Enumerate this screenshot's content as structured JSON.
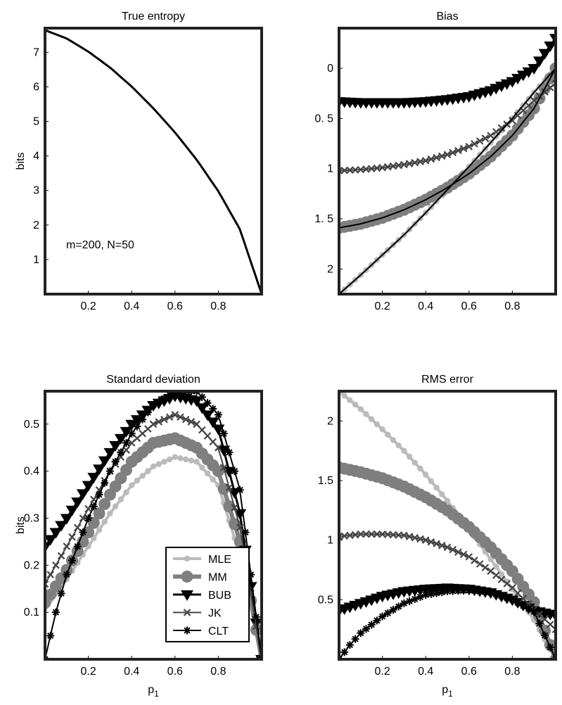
{
  "chart_data": [
    {
      "id": "true_entropy",
      "type": "line",
      "title": "True entropy",
      "xlabel": "",
      "ylabel": "bits",
      "xlim": [
        0,
        1
      ],
      "ylim": [
        0,
        7.7
      ],
      "xticks": [
        0.2,
        0.4,
        0.6,
        0.8
      ],
      "xticklabels": [
        "0.2",
        "0.4",
        "0.6",
        "0.8"
      ],
      "yticks": [
        1,
        2,
        3,
        4,
        5,
        6,
        7
      ],
      "yticklabels": [
        "1",
        "2",
        "3",
        "4",
        "5",
        "6",
        "7"
      ],
      "annotation": "m=200, N=50",
      "series": [
        {
          "x": [
            0,
            0.1,
            0.2,
            0.3,
            0.4,
            0.5,
            0.6,
            0.7,
            0.8,
            0.9,
            1.0
          ],
          "y": [
            7.64,
            7.4,
            7.02,
            6.56,
            6.01,
            5.38,
            4.68,
            3.89,
            2.98,
            1.87,
            0.0
          ],
          "color": "#000000"
        }
      ]
    },
    {
      "id": "bias",
      "type": "line",
      "title": "Bias",
      "xlabel": "",
      "ylabel": "",
      "xlim": [
        0,
        1
      ],
      "ylim": [
        -0.4,
        2.25
      ],
      "y_inverted": true,
      "xticks": [
        0.2,
        0.4,
        0.6,
        0.8
      ],
      "xticklabels": [
        "0.2",
        "0.4",
        "0.6",
        "0.8"
      ],
      "yticks": [
        0,
        0.5,
        1,
        1.5,
        2
      ],
      "yticklabels": [
        "0",
        "0. 5",
        "1",
        "1. 5",
        "2"
      ],
      "series": [
        {
          "name": "MLE",
          "marker": "dot",
          "x": [
            0,
            0.1,
            0.2,
            0.3,
            0.4,
            0.5,
            0.6,
            0.7,
            0.8,
            0.9,
            1.0
          ],
          "y": [
            2.25,
            2.06,
            1.86,
            1.66,
            1.44,
            1.21,
            0.98,
            0.74,
            0.5,
            0.24,
            0.0
          ]
        },
        {
          "name": "MM",
          "marker": "circle",
          "x": [
            0,
            0.1,
            0.2,
            0.3,
            0.4,
            0.5,
            0.6,
            0.7,
            0.8,
            0.9,
            1.0
          ],
          "y": [
            1.59,
            1.55,
            1.49,
            1.41,
            1.31,
            1.19,
            1.05,
            0.88,
            0.67,
            0.4,
            0.0
          ]
        },
        {
          "name": "BUB",
          "marker": "triangle",
          "x": [
            0,
            0.1,
            0.2,
            0.3,
            0.4,
            0.5,
            0.6,
            0.7,
            0.8,
            0.9,
            1.0
          ],
          "y": [
            0.33,
            0.34,
            0.34,
            0.34,
            0.33,
            0.31,
            0.28,
            0.22,
            0.13,
            0.0,
            -0.3
          ]
        },
        {
          "name": "JK",
          "marker": "x",
          "x": [
            0,
            0.1,
            0.2,
            0.3,
            0.4,
            0.5,
            0.6,
            0.7,
            0.8,
            0.9,
            1.0
          ],
          "y": [
            1.02,
            1.01,
            0.99,
            0.96,
            0.92,
            0.86,
            0.78,
            0.67,
            0.52,
            0.32,
            0.15
          ]
        }
      ]
    },
    {
      "id": "standard_deviation",
      "type": "line",
      "title": "Standard deviation",
      "xlabel": "p1",
      "ylabel": "bits",
      "xlim": [
        0,
        1
      ],
      "ylim": [
        0,
        0.57
      ],
      "xticks": [
        0.2,
        0.4,
        0.6,
        0.8
      ],
      "xticklabels": [
        "0.2",
        "0.4",
        "0.6",
        "0.8"
      ],
      "yticks": [
        0.1,
        0.2,
        0.3,
        0.4,
        0.5
      ],
      "yticklabels": [
        "0.1",
        "0.2",
        "0.3",
        "0.4",
        "0.5"
      ],
      "series": [
        {
          "name": "MLE",
          "marker": "dot",
          "x": [
            0,
            0.1,
            0.2,
            0.3,
            0.4,
            0.5,
            0.6,
            0.7,
            0.8,
            0.9,
            1.0
          ],
          "y": [
            0.11,
            0.17,
            0.24,
            0.31,
            0.37,
            0.41,
            0.43,
            0.42,
            0.37,
            0.22,
            0.0
          ]
        },
        {
          "name": "MM",
          "marker": "circle",
          "x": [
            0,
            0.1,
            0.2,
            0.3,
            0.4,
            0.5,
            0.6,
            0.7,
            0.8,
            0.9,
            1.0
          ],
          "y": [
            0.12,
            0.19,
            0.27,
            0.35,
            0.42,
            0.46,
            0.47,
            0.45,
            0.4,
            0.25,
            0.0
          ]
        },
        {
          "name": "BUB",
          "marker": "triangle",
          "x": [
            0,
            0.1,
            0.2,
            0.3,
            0.4,
            0.5,
            0.6,
            0.7,
            0.8,
            0.9,
            1.0
          ],
          "y": [
            0.24,
            0.3,
            0.37,
            0.44,
            0.5,
            0.54,
            0.56,
            0.55,
            0.49,
            0.31,
            0.0
          ]
        },
        {
          "name": "JK",
          "marker": "x",
          "x": [
            0,
            0.1,
            0.2,
            0.3,
            0.4,
            0.5,
            0.6,
            0.7,
            0.8,
            0.9,
            1.0
          ],
          "y": [
            0.16,
            0.24,
            0.32,
            0.4,
            0.46,
            0.5,
            0.52,
            0.5,
            0.45,
            0.28,
            0.0
          ]
        },
        {
          "name": "CLT",
          "marker": "star",
          "x": [
            0,
            0.05,
            0.1,
            0.2,
            0.3,
            0.4,
            0.5,
            0.6,
            0.7,
            0.8,
            0.9,
            1.0
          ],
          "y": [
            0.0,
            0.1,
            0.18,
            0.3,
            0.4,
            0.48,
            0.54,
            0.57,
            0.57,
            0.52,
            0.36,
            0.0
          ]
        }
      ],
      "legend": {
        "placement": "lower-right",
        "entries": [
          "MLE",
          "MM",
          "BUB",
          "JK",
          "CLT"
        ]
      }
    },
    {
      "id": "rms_error",
      "type": "line",
      "title": "RMS error",
      "xlabel": "p1",
      "ylabel": "",
      "xlim": [
        0,
        1
      ],
      "ylim": [
        0,
        2.25
      ],
      "xticks": [
        0.2,
        0.4,
        0.6,
        0.8
      ],
      "xticklabels": [
        "0.2",
        "0.4",
        "0.6",
        "0.8"
      ],
      "yticks": [
        0.5,
        1,
        1.5,
        2
      ],
      "yticklabels": [
        "0.5",
        "1",
        "1.5",
        "2"
      ],
      "series": [
        {
          "name": "MLE",
          "marker": "dot",
          "x": [
            0,
            0.1,
            0.2,
            0.3,
            0.4,
            0.5,
            0.6,
            0.7,
            0.8,
            0.9,
            1.0
          ],
          "y": [
            2.25,
            2.1,
            1.93,
            1.75,
            1.55,
            1.33,
            1.09,
            0.84,
            0.59,
            0.33,
            0.0
          ]
        },
        {
          "name": "MM",
          "marker": "circle",
          "x": [
            0,
            0.1,
            0.2,
            0.3,
            0.4,
            0.5,
            0.6,
            0.7,
            0.8,
            0.9,
            1.0
          ],
          "y": [
            1.61,
            1.57,
            1.52,
            1.45,
            1.36,
            1.25,
            1.11,
            0.94,
            0.74,
            0.48,
            0.0
          ]
        },
        {
          "name": "BUB",
          "marker": "triangle",
          "x": [
            0,
            0.1,
            0.2,
            0.3,
            0.4,
            0.5,
            0.6,
            0.7,
            0.8,
            0.9,
            1.0
          ],
          "y": [
            0.41,
            0.47,
            0.53,
            0.57,
            0.59,
            0.6,
            0.59,
            0.56,
            0.5,
            0.41,
            0.37
          ]
        },
        {
          "name": "JK",
          "marker": "x",
          "x": [
            0,
            0.1,
            0.2,
            0.3,
            0.4,
            0.5,
            0.6,
            0.7,
            0.8,
            0.9,
            1.0
          ],
          "y": [
            1.03,
            1.05,
            1.05,
            1.04,
            1.0,
            0.94,
            0.86,
            0.74,
            0.6,
            0.42,
            0.25
          ]
        },
        {
          "name": "CLT",
          "marker": "star",
          "x": [
            0,
            0.05,
            0.1,
            0.2,
            0.3,
            0.4,
            0.5,
            0.6,
            0.7,
            0.8,
            0.9,
            1.0
          ],
          "y": [
            0.0,
            0.12,
            0.22,
            0.36,
            0.47,
            0.54,
            0.57,
            0.58,
            0.56,
            0.5,
            0.4,
            0.0
          ]
        }
      ]
    }
  ],
  "styles": {
    "MLE": {
      "color": "#bbbbbb",
      "width": 4,
      "marker": "dot"
    },
    "MM": {
      "color": "#7f7f7f",
      "width": 6,
      "marker": "circle"
    },
    "BUB": {
      "color": "#000000",
      "width": 3,
      "marker": "triangle"
    },
    "JK": {
      "color": "#444444",
      "width": 2,
      "marker": "x"
    },
    "CLT": {
      "color": "#000000",
      "width": 2,
      "marker": "star"
    }
  }
}
